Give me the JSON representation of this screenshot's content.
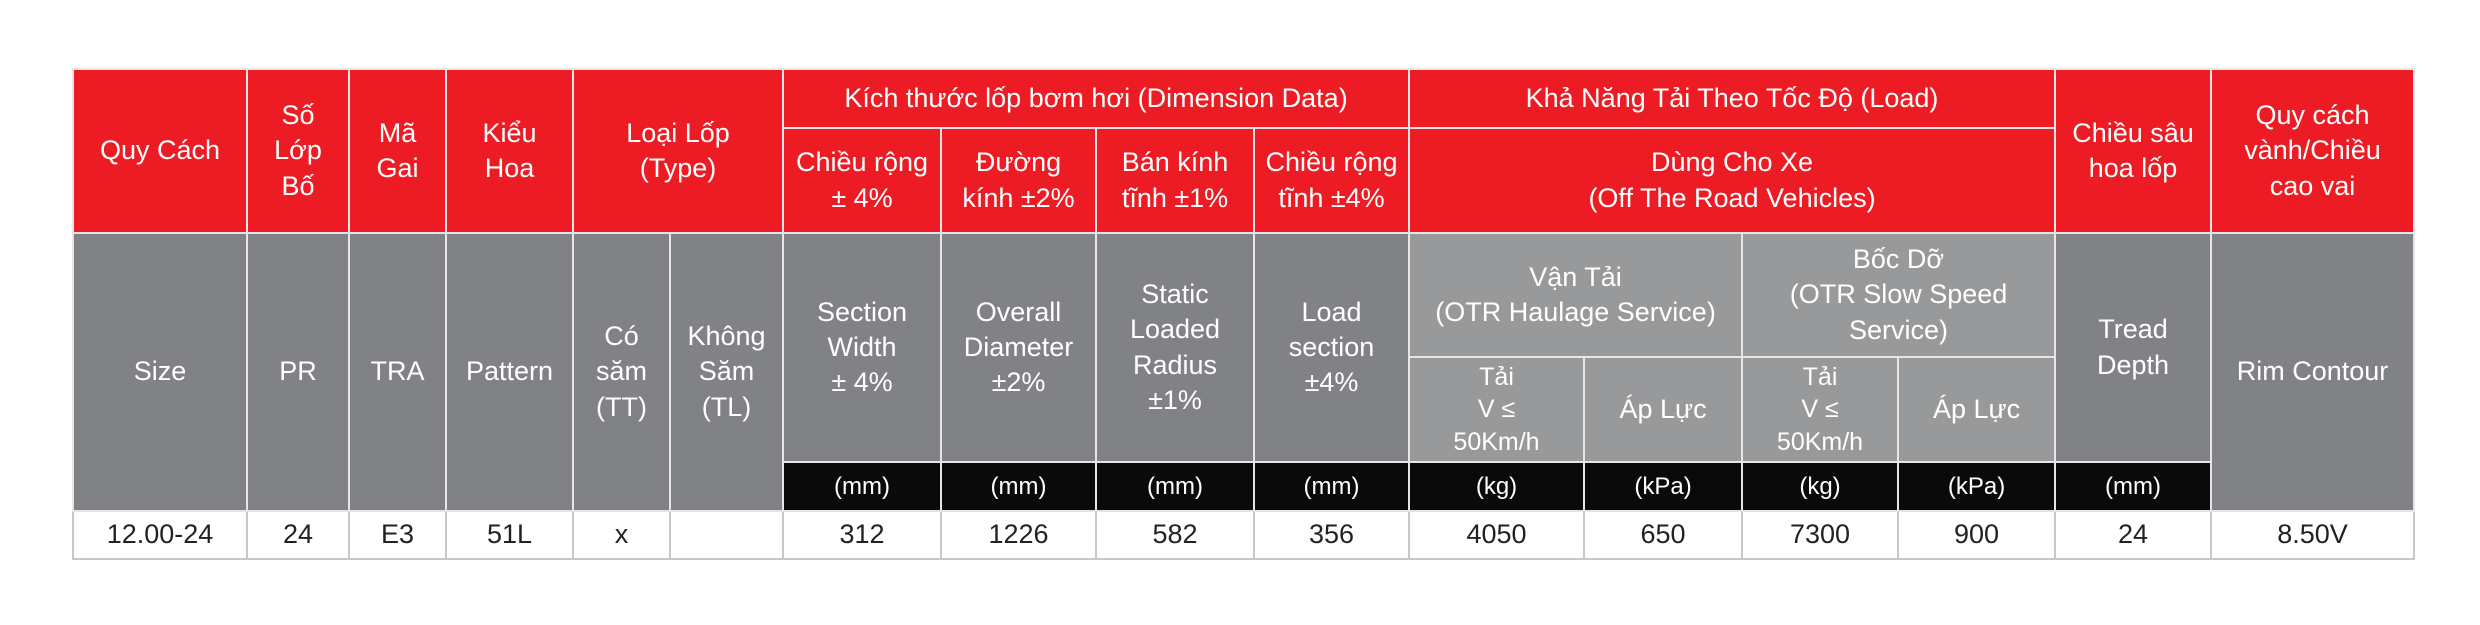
{
  "header": {
    "r1": [
      "Quy Cách",
      "Số\nLớp\nBố",
      "Mã\nGai",
      "Kiểu\nHoa",
      "Loại Lốp\n(Type)",
      "Kích thước lốp bơm hơi (Dimension Data)",
      "Khả Năng Tải Theo Tốc Độ (Load)",
      "Chiều sâu\nhoa lốp",
      "Quy cách\nvành/Chiều\ncao vai"
    ],
    "r2": [
      "Chiều rộng\n± 4%",
      "Đường\nkính ±2%",
      "Bán kính\ntĩnh ±1%",
      "Chiều rộng\ntĩnh ±4%",
      "Dùng Cho Xe\n(Off The Road Vehicles)"
    ],
    "r3": [
      "Size",
      "PR",
      "TRA",
      "Pattern",
      "Có\nsăm\n(TT)",
      "Không\nSăm\n(TL)",
      "Section\nWidth\n± 4%",
      "Overall\nDiameter\n±2%",
      "Static\nLoaded\nRadius\n±1%",
      "Load\nsection\n±4%",
      "Vận Tải\n(OTR Haulage Service)",
      "Bốc Dỡ\n(OTR Slow Speed\nService)",
      "Tread\nDepth",
      "Rim Contour"
    ],
    "r4": [
      "Tải\nV ≤\n50Km/h",
      "Áp Lực",
      "Tải\nV ≤\n50Km/h",
      "Áp Lực"
    ],
    "units": [
      "(mm)",
      "(mm)",
      "(mm)",
      "(mm)",
      "(kg)",
      "(kPa)",
      "(kg)",
      "(kPa)",
      "(mm)"
    ]
  },
  "table": {
    "rows": [
      [
        "12.00-24",
        24,
        "E3",
        "51L",
        "x",
        312,
        1226,
        582,
        356,
        4050,
        650,
        7300,
        900,
        24,
        "8.50V"
      ]
    ]
  }
}
